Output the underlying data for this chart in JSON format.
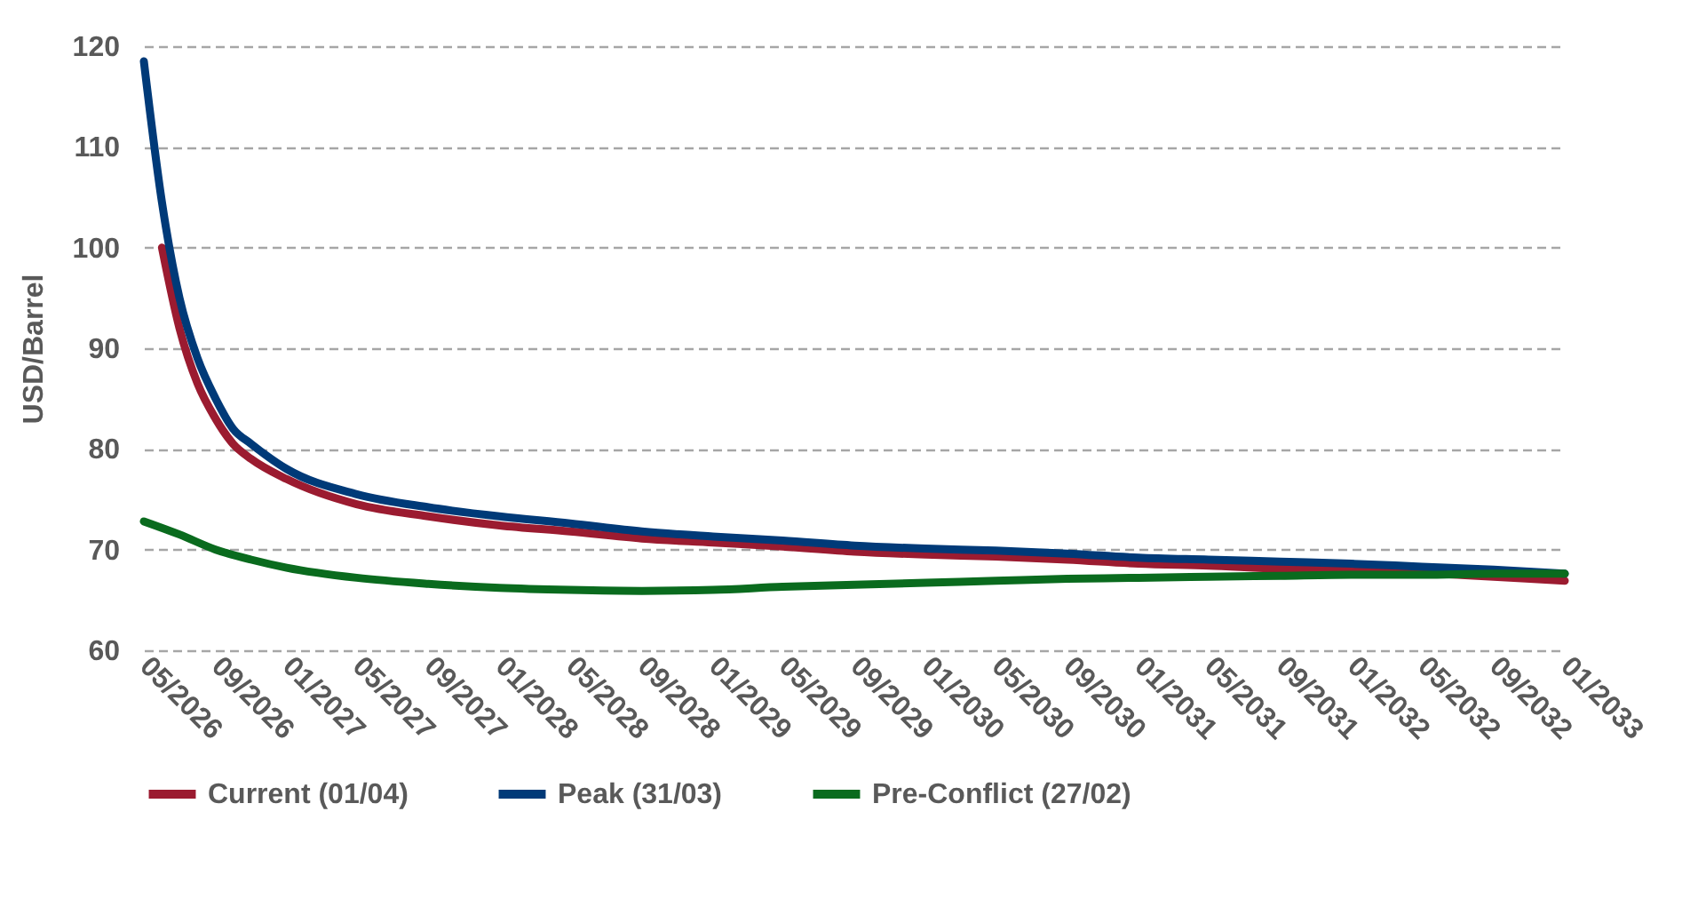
{
  "chart_data": {
    "type": "line",
    "ylabel": "USD/Barrel",
    "xlim": [
      "2026-05",
      "2033-01"
    ],
    "xticks": [
      {
        "value": "2026-05",
        "label": "05/2026"
      },
      {
        "value": "2026-09",
        "label": "09/2026"
      },
      {
        "value": "2027-01",
        "label": "01/2027"
      },
      {
        "value": "2027-05",
        "label": "05/2027"
      },
      {
        "value": "2027-09",
        "label": "09/2027"
      },
      {
        "value": "2028-01",
        "label": "01/2028"
      },
      {
        "value": "2028-05",
        "label": "05/2028"
      },
      {
        "value": "2028-09",
        "label": "09/2028"
      },
      {
        "value": "2029-01",
        "label": "01/2029"
      },
      {
        "value": "2029-05",
        "label": "05/2029"
      },
      {
        "value": "2029-09",
        "label": "09/2029"
      },
      {
        "value": "2030-01",
        "label": "01/2030"
      },
      {
        "value": "2030-05",
        "label": "05/2030"
      },
      {
        "value": "2030-09",
        "label": "09/2030"
      },
      {
        "value": "2031-01",
        "label": "01/2031"
      },
      {
        "value": "2031-05",
        "label": "05/2031"
      },
      {
        "value": "2031-09",
        "label": "09/2031"
      },
      {
        "value": "2032-01",
        "label": "01/2032"
      },
      {
        "value": "2032-05",
        "label": "05/2032"
      },
      {
        "value": "2032-09",
        "label": "09/2032"
      },
      {
        "value": "2033-01",
        "label": "01/2033"
      }
    ],
    "ylim": [
      60,
      120
    ],
    "yticks": [
      60,
      70,
      80,
      90,
      100,
      110,
      120
    ],
    "grid": "y",
    "legend": "bottom",
    "marker": "none",
    "line_style": "solid",
    "series": [
      {
        "name": "Current (01/04)",
        "color": "#9b1b30",
        "x": [
          "2026-06",
          "2026-07",
          "2026-08",
          "2026-09",
          "2026-10",
          "2026-11",
          "2027-01",
          "2027-05",
          "2027-09",
          "2028-01",
          "2028-05",
          "2028-09",
          "2029-01",
          "2029-05",
          "2029-09",
          "2030-01",
          "2030-05",
          "2030-09",
          "2031-01",
          "2031-05",
          "2031-09",
          "2032-01",
          "2032-05",
          "2032-09",
          "2033-01"
        ],
        "values": [
          100,
          92,
          86.5,
          83,
          80.5,
          79,
          77,
          74.5,
          73.3,
          72.4,
          71.8,
          71.1,
          70.7,
          70.3,
          69.8,
          69.5,
          69.3,
          69.0,
          68.6,
          68.4,
          68.1,
          68.0,
          67.7,
          67.3,
          66.9
        ]
      },
      {
        "name": "Peak (31/03)",
        "color": "#003a78",
        "x": [
          "2026-05",
          "2026-06",
          "2026-07",
          "2026-08",
          "2026-09",
          "2026-10",
          "2026-11",
          "2027-01",
          "2027-05",
          "2027-09",
          "2028-01",
          "2028-05",
          "2028-09",
          "2029-01",
          "2029-05",
          "2029-09",
          "2030-01",
          "2030-05",
          "2030-09",
          "2031-01",
          "2031-05",
          "2031-09",
          "2032-01",
          "2032-05",
          "2032-09",
          "2033-01"
        ],
        "values": [
          118.5,
          104.5,
          95,
          89,
          85,
          82,
          80.5,
          78,
          75.5,
          74.2,
          73.3,
          72.6,
          71.8,
          71.3,
          70.9,
          70.4,
          70.1,
          69.9,
          69.6,
          69.2,
          69.0,
          68.8,
          68.6,
          68.3,
          68.0,
          67.6
        ]
      },
      {
        "name": "Pre-Conflict (27/02)",
        "color": "#0a6b1e",
        "x": [
          "2026-05",
          "2026-07",
          "2026-09",
          "2026-11",
          "2027-01",
          "2027-05",
          "2027-09",
          "2028-01",
          "2028-05",
          "2028-09",
          "2029-01",
          "2029-05",
          "2029-09",
          "2030-01",
          "2030-05",
          "2030-09",
          "2031-01",
          "2031-05",
          "2031-09",
          "2032-01",
          "2032-05",
          "2032-09",
          "2033-01"
        ],
        "values": [
          72.8,
          71.5,
          70.0,
          69.0,
          68.2,
          67.2,
          66.6,
          66.2,
          66.0,
          65.9,
          66.0,
          66.3,
          66.5,
          66.7,
          66.9,
          67.1,
          67.2,
          67.3,
          67.4,
          67.5,
          67.5,
          67.6,
          67.6
        ]
      }
    ]
  }
}
